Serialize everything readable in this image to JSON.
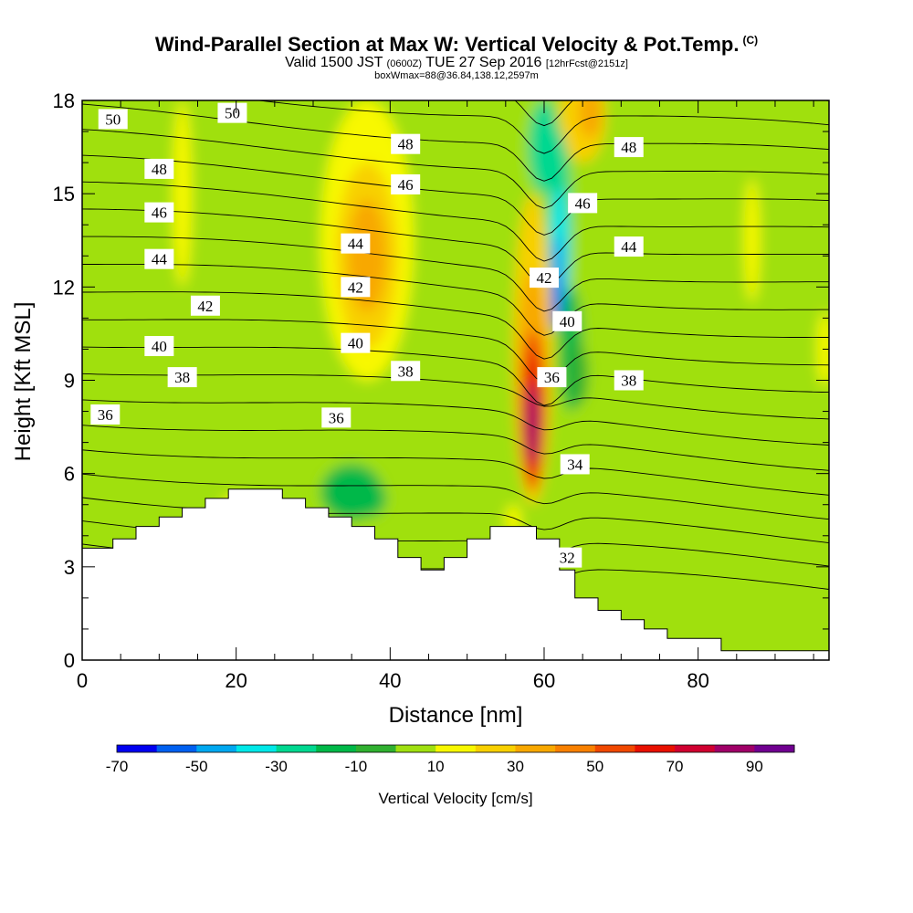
{
  "title": {
    "main": "Wind-Parallel Section at Max W: Vertical Velocity & Pot.Temp.",
    "copyright": "(C)",
    "valid_prefix": "Valid 1500 JST",
    "valid_utc": "(0600Z)",
    "valid_date": "TUE 27 Sep 2016",
    "forecast": "[12hrFcst@2151z]",
    "box_info": "boxWmax=88@36.84,138.12,2597m"
  },
  "chart_data": {
    "type": "heatmap",
    "xlabel": "Distance [nm]",
    "ylabel": "Height [Kft MSL]",
    "xlim": [
      0,
      97
    ],
    "ylim": [
      0,
      18
    ],
    "x_ticks": [
      "0",
      "20",
      "40",
      "60",
      "80"
    ],
    "y_ticks": [
      "0",
      "3",
      "6",
      "9",
      "12",
      "15",
      "18"
    ],
    "x_tick_values": [
      0,
      20,
      40,
      60,
      80
    ],
    "y_tick_values": [
      0,
      3,
      6,
      9,
      12,
      15,
      18
    ],
    "colorbar": {
      "title": "Vertical Velocity [cm/s]",
      "levels": [
        -70,
        -60,
        -50,
        -40,
        -30,
        -20,
        -10,
        0,
        10,
        20,
        30,
        40,
        50,
        60,
        70,
        80,
        90,
        100
      ],
      "labels": [
        "-70",
        "-50",
        "-30",
        "-10",
        "10",
        "30",
        "50",
        "70",
        "90"
      ],
      "label_values": [
        -70,
        -50,
        -30,
        -10,
        10,
        30,
        50,
        70,
        90
      ],
      "colors": [
        "#0000f0",
        "#0060f0",
        "#00a8f0",
        "#00e8e8",
        "#00d890",
        "#00b848",
        "#30b030",
        "#a0e010",
        "#f8f800",
        "#f8d000",
        "#f8a800",
        "#f88000",
        "#f04800",
        "#e81000",
        "#d00030",
        "#a00068",
        "#700090"
      ]
    },
    "velocity_features": [
      {
        "kind": "updraft",
        "x": 58.5,
        "y": 8.0,
        "peak": 88
      },
      {
        "kind": "downdraft",
        "x": 62.5,
        "y": 12.0,
        "peak": -60
      },
      {
        "kind": "updraft",
        "x": 38.0,
        "y": 13.0,
        "peak": 30
      },
      {
        "kind": "updraft",
        "x": 65.0,
        "y": 17.5,
        "peak": 30
      },
      {
        "kind": "downdraft",
        "x": 35.0,
        "y": 5.5,
        "peak": -25
      }
    ],
    "theta_contours": [
      {
        "label": "50",
        "x": 4,
        "y": 17.4
      },
      {
        "label": "50",
        "x": 19.5,
        "y": 17.6
      },
      {
        "label": "48",
        "x": 42,
        "y": 16.6
      },
      {
        "label": "48",
        "x": 71,
        "y": 16.5
      },
      {
        "label": "48",
        "x": 10,
        "y": 15.8
      },
      {
        "label": "46",
        "x": 42,
        "y": 15.3
      },
      {
        "label": "46",
        "x": 65,
        "y": 14.7
      },
      {
        "label": "46",
        "x": 10,
        "y": 14.4
      },
      {
        "label": "44",
        "x": 35.5,
        "y": 13.4
      },
      {
        "label": "44",
        "x": 71,
        "y": 13.3
      },
      {
        "label": "44",
        "x": 10,
        "y": 12.9
      },
      {
        "label": "42",
        "x": 60,
        "y": 12.3
      },
      {
        "label": "42",
        "x": 35.5,
        "y": 12.0
      },
      {
        "label": "42",
        "x": 16,
        "y": 11.4
      },
      {
        "label": "40",
        "x": 63,
        "y": 10.9
      },
      {
        "label": "40",
        "x": 35.5,
        "y": 10.2
      },
      {
        "label": "40",
        "x": 10,
        "y": 10.1
      },
      {
        "label": "38",
        "x": 42,
        "y": 9.3
      },
      {
        "label": "38",
        "x": 71,
        "y": 9.0
      },
      {
        "label": "38",
        "x": 13,
        "y": 9.1
      },
      {
        "label": "36",
        "x": 61,
        "y": 9.1
      },
      {
        "label": "36",
        "x": 33,
        "y": 7.8
      },
      {
        "label": "36",
        "x": 3,
        "y": 7.9
      },
      {
        "label": "34",
        "x": 64,
        "y": 6.3
      },
      {
        "label": "32",
        "x": 63,
        "y": 3.3
      }
    ],
    "terrain_heights": [
      3.6,
      3.6,
      3.6,
      3.6,
      3.9,
      3.9,
      3.9,
      4.3,
      4.3,
      4.3,
      4.6,
      4.6,
      4.6,
      4.9,
      4.9,
      4.9,
      5.2,
      5.2,
      5.2,
      5.5,
      5.5,
      5.5,
      5.5,
      5.5,
      5.5,
      5.5,
      5.2,
      5.2,
      5.2,
      4.9,
      4.9,
      4.9,
      4.6,
      4.6,
      4.6,
      4.3,
      4.3,
      4.3,
      3.9,
      3.9,
      3.9,
      3.3,
      3.3,
      3.3,
      2.9,
      2.9,
      2.9,
      3.3,
      3.3,
      3.3,
      3.9,
      3.9,
      3.9,
      4.3,
      4.3,
      4.3,
      4.3,
      4.3,
      4.3,
      3.9,
      3.9,
      3.9,
      2.9,
      2.9,
      2.0,
      2.0,
      2.0,
      1.6,
      1.6,
      1.6,
      1.3,
      1.3,
      1.3,
      1.0,
      1.0,
      1.0,
      0.7,
      0.7,
      0.7,
      0.7,
      0.7,
      0.7,
      0.7,
      0.3,
      0.3,
      0.3,
      0.3,
      0.3,
      0.3,
      0.3,
      0.3,
      0.3,
      0.3,
      0.3,
      0.3,
      0.3,
      0.3,
      0.3
    ]
  }
}
